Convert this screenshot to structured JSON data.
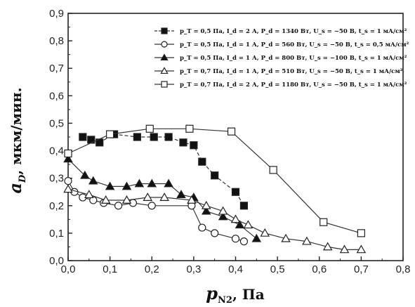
{
  "chart_data": {
    "type": "line",
    "xlabel": "p",
    "xlabel_sub": "N2",
    "xlabel_unit": ", Па",
    "ylabel": "a",
    "ylabel_sub": "D",
    "ylabel_unit": ", мкм/мин.",
    "xlim": [
      0.0,
      0.8
    ],
    "ylim": [
      0.0,
      0.9
    ],
    "x_ticks": [
      "0,0",
      "0,1",
      "0,2",
      "0,3",
      "0,4",
      "0,5",
      "0,6",
      "0,7",
      "0,8"
    ],
    "y_ticks": [
      "0,0",
      "0,1",
      "0,2",
      "0,3",
      "0,4",
      "0,5",
      "0,6",
      "0,7",
      "0,8",
      "0,9"
    ],
    "grid": false,
    "legend_position": "top-right",
    "series": [
      {
        "name": "p_T = 0,5 Па, I_d = 2 А, P_d = 1340 Вт, U_s = −50 В, t_s = 1 мА/см²",
        "marker": "square-filled",
        "line": "dashed",
        "x": [
          0.035,
          0.055,
          0.075,
          0.11,
          0.165,
          0.205,
          0.24,
          0.275,
          0.3,
          0.32,
          0.35,
          0.4,
          0.42
        ],
        "y": [
          0.45,
          0.44,
          0.43,
          0.46,
          0.45,
          0.45,
          0.45,
          0.43,
          0.42,
          0.36,
          0.31,
          0.25,
          0.2
        ]
      },
      {
        "name": "p_T = 0,5 Па, I_d = 1 А, P_d = 560 Вт, U_s = −50 В, t_s = 0,5 мА/см²",
        "marker": "circle-open",
        "line": "solid",
        "x": [
          0.0,
          0.015,
          0.035,
          0.06,
          0.085,
          0.12,
          0.155,
          0.2,
          0.295,
          0.32,
          0.35,
          0.4,
          0.42
        ],
        "y": [
          0.29,
          0.25,
          0.23,
          0.22,
          0.21,
          0.2,
          0.21,
          0.2,
          0.2,
          0.12,
          0.1,
          0.08,
          0.07
        ]
      },
      {
        "name": "p_T = 0,5 Па, I_d = 1 А, P_d = 800 Вт, U_s = −100 В, t_s = 1 мА/см²",
        "marker": "triangle-filled",
        "line": "solid",
        "x": [
          0.0,
          0.04,
          0.06,
          0.1,
          0.14,
          0.17,
          0.2,
          0.24,
          0.27,
          0.3,
          0.33,
          0.37,
          0.41,
          0.45
        ],
        "y": [
          0.37,
          0.31,
          0.29,
          0.27,
          0.27,
          0.28,
          0.28,
          0.28,
          0.24,
          0.23,
          0.18,
          0.16,
          0.13,
          0.08
        ]
      },
      {
        "name": "p_T = 0,7 Па, I_d = 1 А, P_d = 510 Вт, U_s = −50 В, t_s = 1 мА/см²",
        "marker": "triangle-open",
        "line": "solid",
        "x": [
          0.0,
          0.05,
          0.09,
          0.14,
          0.19,
          0.23,
          0.295,
          0.33,
          0.37,
          0.4,
          0.43,
          0.47,
          0.52,
          0.57,
          0.62,
          0.66,
          0.7
        ],
        "y": [
          0.26,
          0.24,
          0.22,
          0.22,
          0.23,
          0.23,
          0.22,
          0.2,
          0.18,
          0.15,
          0.13,
          0.1,
          0.08,
          0.07,
          0.05,
          0.04,
          0.04
        ]
      },
      {
        "name": "p_T = 0,7 Па, I_d = 2 А, P_d = 1180 Вт, U_s = −50 В, t_s = 1 мА/см²",
        "marker": "square-open",
        "line": "solid",
        "x": [
          0.0,
          0.1,
          0.195,
          0.29,
          0.39,
          0.49,
          0.61,
          0.7
        ],
        "y": [
          0.39,
          0.46,
          0.48,
          0.48,
          0.47,
          0.33,
          0.14,
          0.1
        ]
      }
    ]
  }
}
